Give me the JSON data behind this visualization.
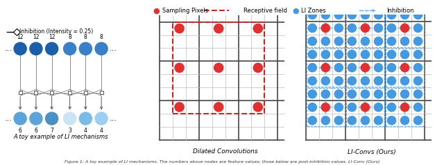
{
  "legend_inhibition_label": "Inhibition (Intensity = 0.25)",
  "legend_sampling_label": "Sampling Pixels",
  "legend_receptive_label": "Receptive field",
  "legend_li_zones_label": "LI Zones",
  "legend_inhibition2_label": "Inhibition",
  "panel1_title": "A toy example of LI mechanisms",
  "panel2_title": "Dilated Convolutions",
  "panel3_title": "LI-Convs (Ours)",
  "top_values": [
    12,
    12,
    12,
    8,
    8,
    8
  ],
  "bottom_values": [
    6,
    6,
    7,
    3,
    4,
    4
  ],
  "top_colors": [
    "#1a5fa8",
    "#1a5fa8",
    "#1a5fa8",
    "#3a80c8",
    "#3a80c8",
    "#3a80c8"
  ],
  "bottom_colors": [
    "#5ba3d9",
    "#5ba3d9",
    "#4a90c4",
    "#c8e4f5",
    "#7abce8",
    "#a0cef0"
  ],
  "bg_color": "#ffffff",
  "sampling_color": "#e03030",
  "receptive_color": "#cc2222",
  "li_zone_color": "#4499e0",
  "inhibition_arrow_color": "#66aaee",
  "grid_thick_color": "#444444",
  "grid_thin_color": "#bbbbbb"
}
